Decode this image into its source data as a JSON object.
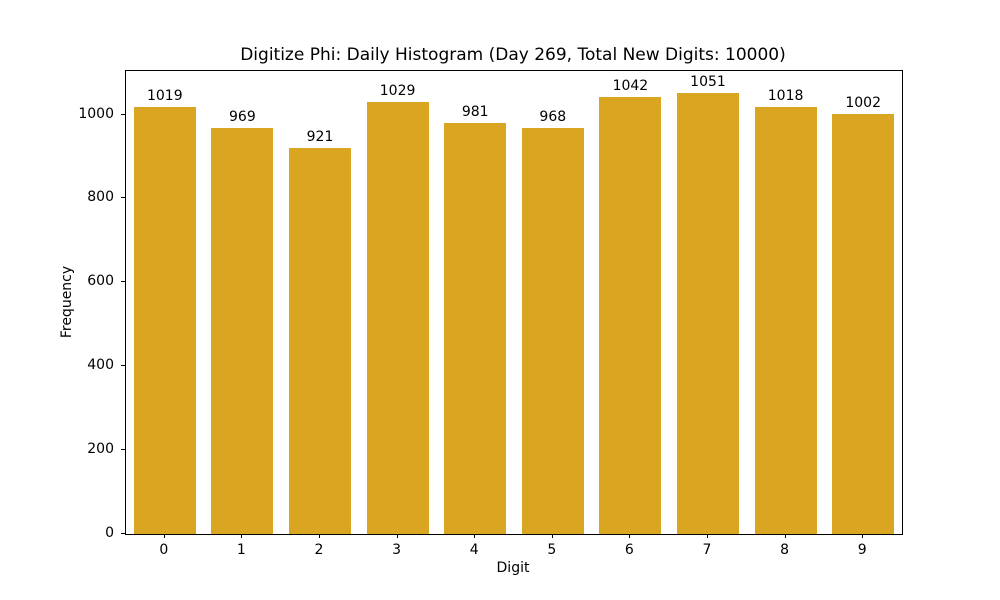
{
  "chart_data": {
    "type": "bar",
    "title": "Digitize Phi: Daily Histogram (Day 269, Total New Digits: 10000)",
    "xlabel": "Digit",
    "ylabel": "Frequency",
    "categories": [
      "0",
      "1",
      "2",
      "3",
      "4",
      "5",
      "6",
      "7",
      "8",
      "9"
    ],
    "values": [
      1019,
      969,
      921,
      1029,
      981,
      968,
      1042,
      1051,
      1018,
      1002
    ],
    "bar_value_labels": [
      "1019",
      "969",
      "921",
      "1029",
      "981",
      "968",
      "1042",
      "1051",
      "1018",
      "1002"
    ],
    "yticks": [
      0,
      200,
      400,
      600,
      800,
      1000
    ],
    "ylim": [
      0,
      1104
    ],
    "bar_color": "#DAA520",
    "axis_color": "#000000",
    "background_color": "#ffffff",
    "grid": false,
    "legend": null,
    "bar_width_fraction": 0.8
  }
}
